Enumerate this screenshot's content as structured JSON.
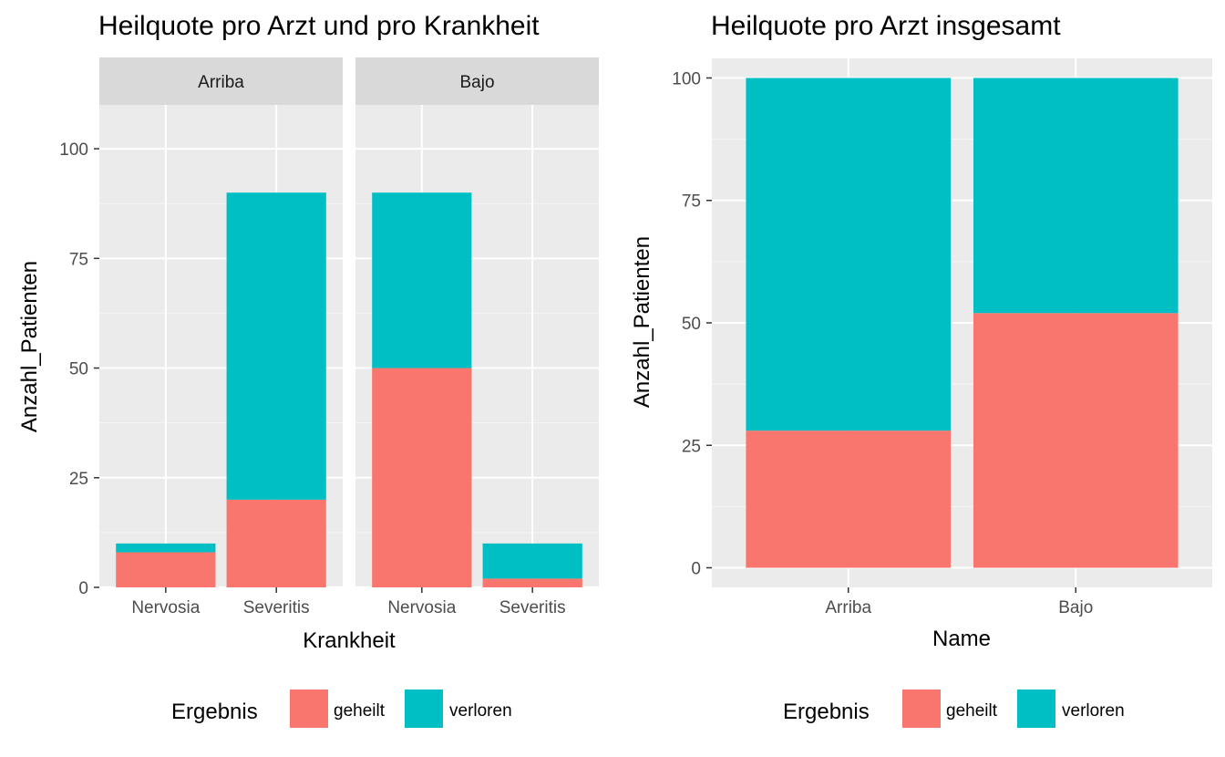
{
  "chart_data": [
    {
      "type": "bar",
      "stacked": true,
      "faceted": true,
      "title": "Heilquote pro Arzt und pro Krankheit",
      "xlabel": "Krankheit",
      "ylabel": "Anzahl_Patienten",
      "ylim": [
        0,
        110
      ],
      "yticks": [
        0,
        25,
        50,
        75,
        100
      ],
      "grid": true,
      "legend_position": "bottom",
      "legend_title": "Ergebnis",
      "categories": [
        "Nervosia",
        "Severitis"
      ],
      "facets": [
        {
          "name": "Arriba",
          "series": [
            {
              "name": "geheilt",
              "values": [
                8,
                20
              ]
            },
            {
              "name": "verloren",
              "values": [
                2,
                70
              ]
            }
          ]
        },
        {
          "name": "Bajo",
          "series": [
            {
              "name": "geheilt",
              "values": [
                50,
                2
              ]
            },
            {
              "name": "verloren",
              "values": [
                40,
                8
              ]
            }
          ]
        }
      ]
    },
    {
      "type": "bar",
      "stacked": true,
      "title": "Heilquote pro Arzt insgesamt",
      "xlabel": "Name",
      "ylabel": "Anzahl_Patienten",
      "ylim": [
        -4,
        104
      ],
      "yticks": [
        0,
        25,
        50,
        75,
        100
      ],
      "grid": true,
      "legend_position": "bottom",
      "legend_title": "Ergebnis",
      "categories": [
        "Arriba",
        "Bajo"
      ],
      "series": [
        {
          "name": "geheilt",
          "values": [
            28,
            52
          ]
        },
        {
          "name": "verloren",
          "values": [
            72,
            48
          ]
        }
      ]
    }
  ],
  "colors": {
    "geheilt": "#F8766D",
    "verloren": "#00BFC4",
    "panel_bg": "#EBEBEB",
    "strip_bg": "#D9D9D9",
    "grid_major": "#FFFFFF"
  }
}
